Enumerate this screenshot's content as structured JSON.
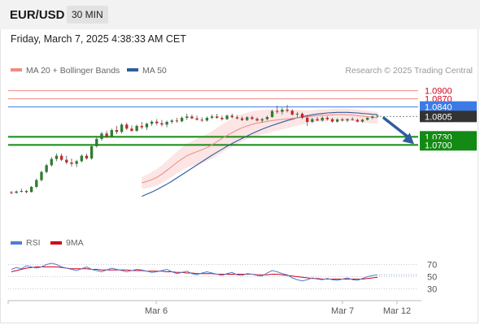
{
  "header": {
    "pair": "EUR/USD",
    "timeframe": "30 MIN",
    "datetime": "Friday, March 7, 2025 4:38:33 AM CET"
  },
  "legend": {
    "ma20_label": "MA 20 + Bollinger Bands",
    "ma50_label": "MA 50",
    "credit": "Research © 2025 Trading Central",
    "colors": {
      "ma20": "#f08a84",
      "ma50": "#2f5d9e",
      "bands_fill": "#fbdcdc"
    }
  },
  "rsi_legend": {
    "rsi_label": "RSI",
    "ma_label": "9MA",
    "colors": {
      "rsi": "#4e7fd6",
      "ma": "#d0021b"
    }
  },
  "x_axis": {
    "labels": [
      "Mar 6",
      "Mar 7",
      "Mar 12"
    ]
  },
  "chart_data": [
    {
      "type": "line",
      "title": "",
      "y_axis": "price",
      "ylim": [
        1.0485,
        1.0935
      ],
      "levels": [
        {
          "value": "1.0900",
          "kind": "resistance",
          "color": "#f08a84"
        },
        {
          "value": "1.0870",
          "kind": "resistance",
          "color": "#f08a84"
        },
        {
          "value": "1.0840",
          "kind": "pivot",
          "color": "#3c7be6"
        },
        {
          "value": "1.0805",
          "kind": "last_price",
          "color": "#333333"
        },
        {
          "value": "1.0730",
          "kind": "support",
          "color": "#138a13"
        },
        {
          "value": "1.0700",
          "kind": "support",
          "color": "#138a13"
        }
      ],
      "arrow": {
        "direction": "down",
        "from_price": 1.0805,
        "to_price": 1.07,
        "color": "#2f5d9e"
      },
      "candles": [
        [
          1.0525,
          1.053,
          1.0518,
          1.0523
        ],
        [
          1.0523,
          1.0532,
          1.052,
          1.0528
        ],
        [
          1.0528,
          1.0538,
          1.0524,
          1.053
        ],
        [
          1.053,
          1.0534,
          1.0521,
          1.0526
        ],
        [
          1.0526,
          1.0548,
          1.0524,
          1.0545
        ],
        [
          1.0545,
          1.0575,
          1.054,
          1.057
        ],
        [
          1.057,
          1.0605,
          1.0565,
          1.06
        ],
        [
          1.06,
          1.063,
          1.0595,
          1.0625
        ],
        [
          1.0625,
          1.0655,
          1.062,
          1.0648
        ],
        [
          1.0648,
          1.0668,
          1.064,
          1.066
        ],
        [
          1.066,
          1.0668,
          1.064,
          1.0645
        ],
        [
          1.0645,
          1.066,
          1.0628,
          1.0635
        ],
        [
          1.0635,
          1.065,
          1.062,
          1.063
        ],
        [
          1.063,
          1.0645,
          1.0618,
          1.064
        ],
        [
          1.064,
          1.0665,
          1.0635,
          1.066
        ],
        [
          1.066,
          1.0668,
          1.0645,
          1.065
        ],
        [
          1.065,
          1.07,
          1.0645,
          1.0695
        ],
        [
          1.0695,
          1.073,
          1.069,
          1.0722
        ],
        [
          1.0722,
          1.0748,
          1.0715,
          1.0742
        ],
        [
          1.0742,
          1.0752,
          1.0725,
          1.0732
        ],
        [
          1.0732,
          1.076,
          1.0728,
          1.0755
        ],
        [
          1.0755,
          1.077,
          1.074,
          1.0748
        ],
        [
          1.0748,
          1.078,
          1.0742,
          1.0775
        ],
        [
          1.0775,
          1.0782,
          1.0755,
          1.076
        ],
        [
          1.076,
          1.0772,
          1.0748,
          1.0752
        ],
        [
          1.0752,
          1.0775,
          1.0748,
          1.077
        ],
        [
          1.077,
          1.0785,
          1.0758,
          1.0765
        ],
        [
          1.0765,
          1.0782,
          1.0755,
          1.0778
        ],
        [
          1.0778,
          1.079,
          1.077,
          1.0786
        ],
        [
          1.0786,
          1.0795,
          1.0772,
          1.078
        ],
        [
          1.078,
          1.0792,
          1.0768,
          1.0775
        ],
        [
          1.0775,
          1.079,
          1.0765,
          1.0785
        ],
        [
          1.0785,
          1.0795,
          1.0778,
          1.079
        ],
        [
          1.079,
          1.08,
          1.0782,
          1.0787
        ],
        [
          1.0787,
          1.0805,
          1.0784,
          1.08
        ],
        [
          1.08,
          1.0815,
          1.0792,
          1.0805
        ],
        [
          1.0805,
          1.0812,
          1.0795,
          1.0798
        ],
        [
          1.0798,
          1.0808,
          1.079,
          1.0793
        ],
        [
          1.0793,
          1.0802,
          1.0785,
          1.079
        ],
        [
          1.079,
          1.0805,
          1.0786,
          1.08
        ],
        [
          1.08,
          1.0812,
          1.0795,
          1.0805
        ],
        [
          1.0805,
          1.0815,
          1.0796,
          1.08
        ],
        [
          1.08,
          1.0808,
          1.079,
          1.0795
        ],
        [
          1.0795,
          1.0812,
          1.0792,
          1.0808
        ],
        [
          1.0808,
          1.0816,
          1.0798,
          1.0802
        ],
        [
          1.0802,
          1.081,
          1.0794,
          1.0798
        ],
        [
          1.0798,
          1.0805,
          1.0788,
          1.0792
        ],
        [
          1.0792,
          1.0806,
          1.0788,
          1.0802
        ],
        [
          1.0802,
          1.0808,
          1.0792,
          1.0796
        ],
        [
          1.0796,
          1.0802,
          1.0786,
          1.079
        ],
        [
          1.079,
          1.08,
          1.0782,
          1.0795
        ],
        [
          1.0795,
          1.0808,
          1.079,
          1.0803
        ],
        [
          1.0803,
          1.083,
          1.08,
          1.0825
        ],
        [
          1.0825,
          1.0845,
          1.0815,
          1.0822
        ],
        [
          1.0822,
          1.0838,
          1.0812,
          1.083
        ],
        [
          1.083,
          1.0848,
          1.082,
          1.0826
        ],
        [
          1.0826,
          1.0832,
          1.0808,
          1.0812
        ],
        [
          1.0812,
          1.0822,
          1.08,
          1.0815
        ],
        [
          1.0815,
          1.082,
          1.0795,
          1.08
        ],
        [
          1.08,
          1.0808,
          1.077,
          1.0785
        ],
        [
          1.0785,
          1.08,
          1.078,
          1.0795
        ],
        [
          1.0795,
          1.0803,
          1.0788,
          1.079
        ],
        [
          1.079,
          1.0805,
          1.0786,
          1.08
        ],
        [
          1.08,
          1.0806,
          1.079,
          1.0795
        ],
        [
          1.0795,
          1.08,
          1.0782,
          1.0786
        ],
        [
          1.0786,
          1.0798,
          1.0782,
          1.0794
        ],
        [
          1.0794,
          1.08,
          1.0786,
          1.079
        ],
        [
          1.079,
          1.0798,
          1.0784,
          1.0795
        ],
        [
          1.0795,
          1.0802,
          1.079,
          1.0792
        ],
        [
          1.0792,
          1.0797,
          1.0783,
          1.0786
        ],
        [
          1.0786,
          1.0796,
          1.0782,
          1.0793
        ],
        [
          1.0793,
          1.0802,
          1.079,
          1.08
        ],
        [
          1.08,
          1.0808,
          1.0795,
          1.0805
        ],
        [
          1.0805,
          1.0812,
          1.08,
          1.0808
        ]
      ],
      "ma20": [
        1.056,
        1.0565,
        1.0572,
        1.058,
        1.0592,
        1.0606,
        1.062,
        1.0635,
        1.0648,
        1.066,
        1.0668,
        1.0675,
        1.0682,
        1.069,
        1.07,
        1.0712,
        1.0724,
        1.0735,
        1.0745,
        1.0755,
        1.0763,
        1.077,
        1.0776,
        1.078,
        1.0784,
        1.0787,
        1.079,
        1.0792,
        1.0794,
        1.0796,
        1.0798,
        1.08,
        1.0802,
        1.0804,
        1.0806,
        1.0808,
        1.0809,
        1.081,
        1.0811,
        1.0812,
        1.0812,
        1.0811,
        1.081,
        1.0808,
        1.0806,
        1.0804,
        1.0802,
        1.08
      ],
      "ma50": [
        1.051,
        1.0518,
        1.0526,
        1.0535,
        1.0545,
        1.0555,
        1.0566,
        1.0578,
        1.059,
        1.0602,
        1.0614,
        1.0626,
        1.0638,
        1.065,
        1.0662,
        1.0673,
        1.0684,
        1.0695,
        1.0705,
        1.0715,
        1.0724,
        1.0733,
        1.0742,
        1.075,
        1.0758,
        1.0765,
        1.0772,
        1.0778,
        1.0784,
        1.079,
        1.0795,
        1.08,
        1.0804,
        1.0808,
        1.0811,
        1.0814,
        1.0816,
        1.0818,
        1.0819,
        1.082,
        1.082,
        1.082,
        1.0819,
        1.0818,
        1.0816,
        1.0815,
        1.0813,
        1.0812
      ]
    },
    {
      "type": "line",
      "title": "",
      "y_axis": "RSI",
      "ylim": [
        20,
        80
      ],
      "yticks": [
        "70",
        "50",
        "30"
      ],
      "series": [
        {
          "name": "RSI",
          "values": [
            62,
            65,
            63,
            68,
            66,
            64,
            66,
            70,
            72,
            70,
            66,
            64,
            62,
            60,
            63,
            66,
            62,
            60,
            58,
            61,
            64,
            62,
            60,
            58,
            60,
            62,
            61,
            59,
            57,
            58,
            60,
            62,
            58,
            55,
            57,
            59,
            55,
            53,
            56,
            58,
            56,
            54,
            52,
            55,
            57,
            53,
            52,
            55,
            54,
            52,
            51,
            56,
            60,
            58,
            55,
            53,
            48,
            45,
            43,
            45,
            48,
            46,
            45,
            47,
            45,
            44,
            46,
            48,
            45,
            44,
            47,
            50,
            52,
            53
          ]
        },
        {
          "name": "9MA",
          "values": [
            58,
            60,
            62,
            64,
            65,
            66,
            66,
            66,
            66,
            66,
            65,
            64,
            63,
            63,
            63,
            63,
            62,
            62,
            61,
            61,
            61,
            61,
            61,
            61,
            60,
            60,
            60,
            59,
            59,
            59,
            59,
            58,
            58,
            57,
            57,
            56,
            56,
            55,
            55,
            55,
            55,
            54,
            54,
            54,
            54,
            54,
            54,
            54,
            54,
            53,
            53,
            53,
            54,
            54,
            53,
            52,
            51,
            50,
            49,
            48,
            47,
            47,
            46,
            46,
            46,
            46,
            46,
            46,
            46,
            46,
            46,
            47,
            48,
            49
          ]
        }
      ]
    }
  ]
}
